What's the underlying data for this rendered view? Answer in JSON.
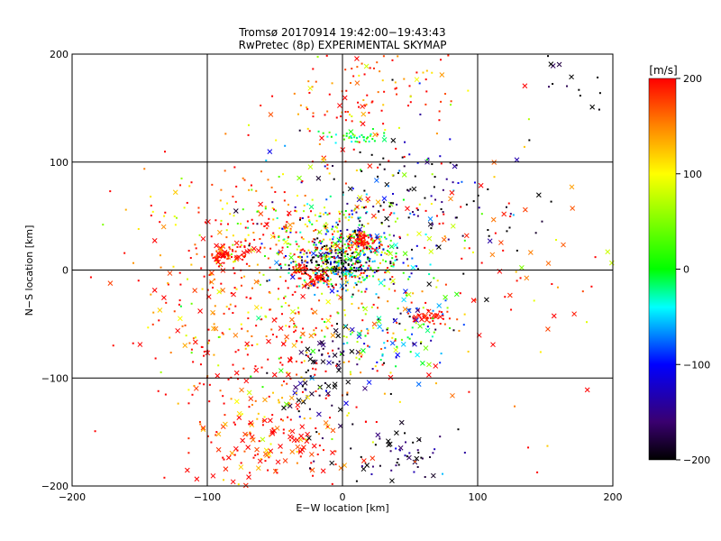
{
  "chart_data": {
    "type": "scatter",
    "title": "Tromsø 20170914 19:42:00−19:43:43",
    "subtitle": "RwPretec (8p) EXPERIMENTAL SKYMAP",
    "xlabel": "E−W location [km]",
    "ylabel": "N−S location [km]",
    "xlim": [
      -200,
      200
    ],
    "ylim": [
      -200,
      200
    ],
    "xticks": [
      -200,
      -100,
      0,
      100,
      200
    ],
    "yticks": [
      -200,
      -100,
      0,
      100,
      200
    ],
    "x_tick_labels": [
      "−200",
      "−100",
      "0",
      "100",
      "200"
    ],
    "y_tick_labels": [
      "−200",
      "−100",
      "0",
      "100",
      "200"
    ],
    "grid": true,
    "colorbar": {
      "label": "[m/s]",
      "range": [
        -200,
        200
      ],
      "ticks": [
        200,
        100,
        0,
        -100,
        -200
      ],
      "tick_labels": [
        "200",
        "100",
        "0",
        "−100",
        "−200"
      ],
      "colors": [
        "#000000",
        "#3a0070",
        "#0000ff",
        "#00ffff",
        "#00ff00",
        "#ffff00",
        "#ff8000",
        "#ff0000"
      ]
    },
    "markers": {
      "small": "dot",
      "large": "x"
    },
    "clusters": [
      {
        "x": 15,
        "y": 28,
        "sx": 5,
        "sy": 4,
        "n": 90,
        "v": 200,
        "vs": 15,
        "xf": 0.1
      },
      {
        "x": -32,
        "y": 0,
        "sx": 3,
        "sy": 3,
        "n": 45,
        "v": 200,
        "vs": 10,
        "xf": 0.1
      },
      {
        "x": -18,
        "y": -8,
        "sx": 4,
        "sy": 4,
        "n": 60,
        "v": 200,
        "vs": 15,
        "xf": 0.1
      },
      {
        "x": -5,
        "y": 5,
        "sx": 12,
        "sy": 8,
        "n": 130,
        "v": -200,
        "vs": 40,
        "xf": 0.05
      },
      {
        "x": 5,
        "y": 15,
        "sx": 25,
        "sy": 20,
        "n": 420,
        "v": 0,
        "vs": 110,
        "xf": 0.05
      },
      {
        "x": 10,
        "y": 122,
        "sx": 12,
        "sy": 3,
        "n": 40,
        "v": -10,
        "vs": 30,
        "xf": 0.05
      },
      {
        "x": 20,
        "y": 170,
        "sx": 35,
        "sy": 25,
        "n": 120,
        "v": 180,
        "vs": 60,
        "xf": 0.1
      },
      {
        "x": -85,
        "y": 15,
        "sx": 10,
        "sy": 6,
        "n": 70,
        "v": 200,
        "vs": 20,
        "xf": 0.3
      },
      {
        "x": 65,
        "y": -45,
        "sx": 6,
        "sy": 4,
        "n": 40,
        "v": 200,
        "vs": 20,
        "xf": 0.3
      },
      {
        "x": -55,
        "y": -165,
        "sx": 28,
        "sy": 18,
        "n": 120,
        "v": 190,
        "vs": 40,
        "xf": 0.5
      },
      {
        "x": 40,
        "y": -170,
        "sx": 25,
        "sy": 15,
        "n": 60,
        "v": -180,
        "vs": 40,
        "xf": 0.5
      },
      {
        "x": -20,
        "y": -115,
        "sx": 15,
        "sy": 15,
        "n": 40,
        "v": -180,
        "vs": 40,
        "xf": 0.5
      },
      {
        "x": -10,
        "y": -75,
        "sx": 10,
        "sy": 12,
        "n": 35,
        "v": -190,
        "vs": 30,
        "xf": 0.6
      },
      {
        "x": 40,
        "y": -60,
        "sx": 25,
        "sy": 20,
        "n": 100,
        "v": -60,
        "vs": 100,
        "xf": 0.3
      },
      {
        "x": -50,
        "y": -60,
        "sx": 45,
        "sy": 50,
        "n": 320,
        "v": 170,
        "vs": 70,
        "xf": 0.2
      },
      {
        "x": 50,
        "y": 60,
        "sx": 40,
        "sy": 35,
        "n": 160,
        "v": -170,
        "vs": 80,
        "xf": 0.15
      },
      {
        "x": -50,
        "y": 40,
        "sx": 40,
        "sy": 30,
        "n": 180,
        "v": 150,
        "vs": 90,
        "xf": 0.1
      },
      {
        "x": 170,
        "y": 175,
        "sx": 20,
        "sy": 15,
        "n": 18,
        "v": -200,
        "vs": 30,
        "xf": 0.4
      },
      {
        "x": 120,
        "y": 20,
        "sx": 30,
        "sy": 40,
        "n": 30,
        "v": 190,
        "vs": 30,
        "xf": 0.7
      },
      {
        "x": -120,
        "y": -30,
        "sx": 25,
        "sy": 40,
        "n": 30,
        "v": 190,
        "vs": 40,
        "xf": 0.6
      },
      {
        "x": 0,
        "y": 0,
        "sx": 80,
        "sy": 90,
        "n": 250,
        "v": 180,
        "vs": 80,
        "xf": 0.15
      }
    ]
  }
}
